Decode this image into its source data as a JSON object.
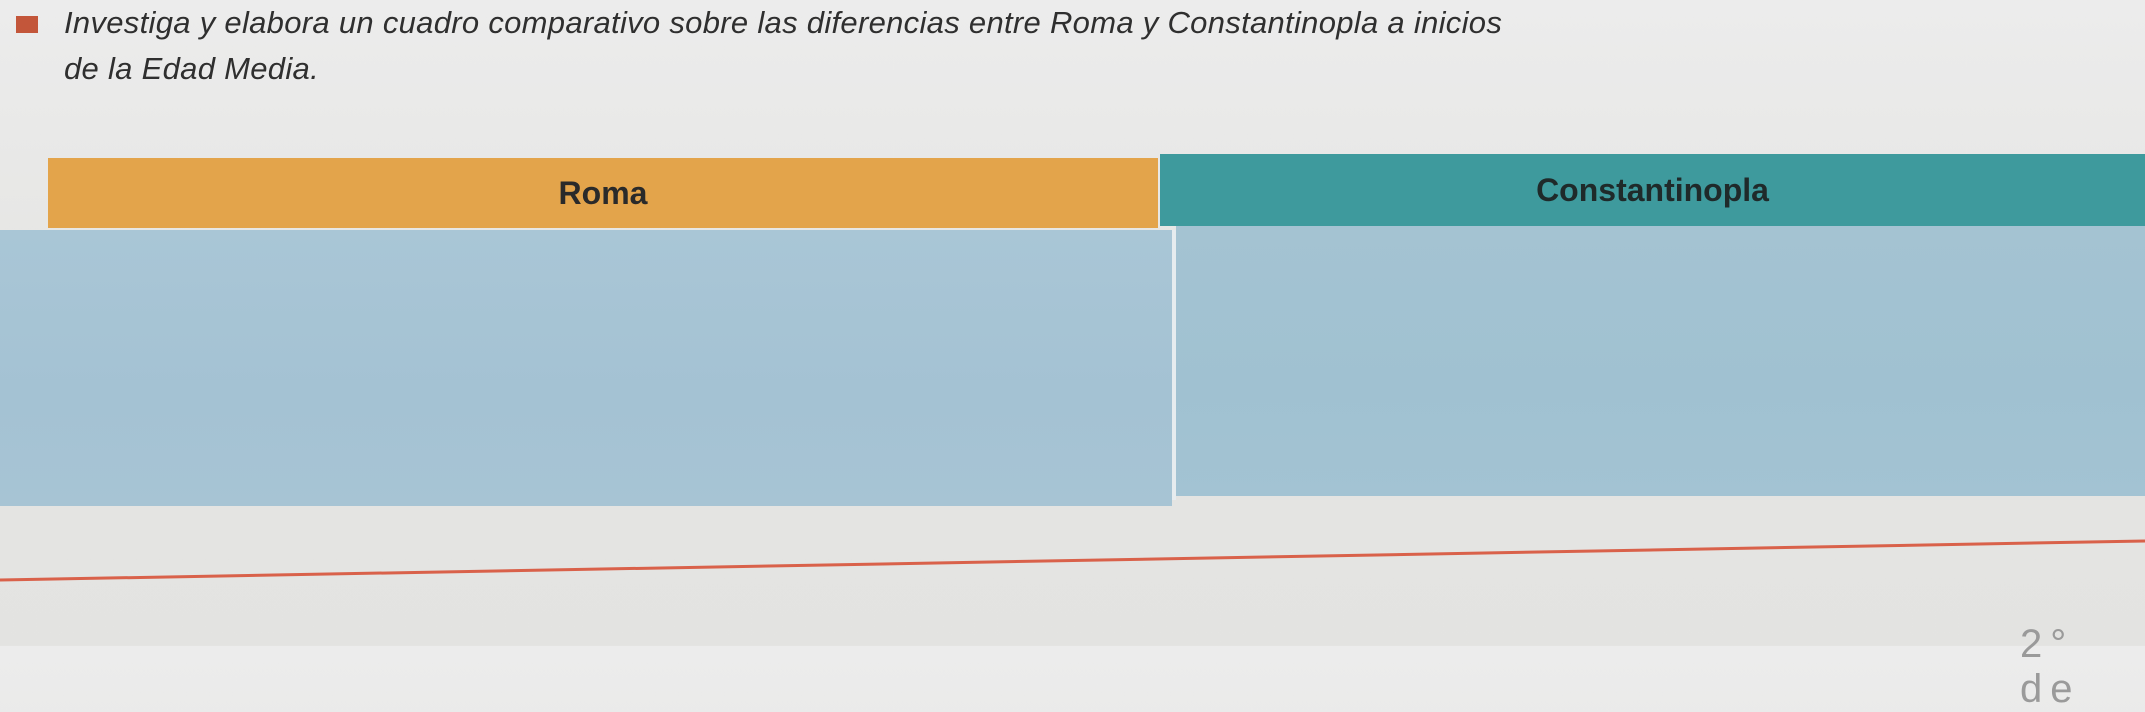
{
  "activity": {
    "instruction_line1": "Investiga y elabora un cuadro comparativo sobre las diferencias entre Roma y Constantinopla a inicios",
    "instruction_line2": "de la Edad Media."
  },
  "table": {
    "headers": [
      "Roma",
      "Constantinopla"
    ],
    "header_colors": {
      "roma": "#e3a44b",
      "constantinopla": "#3e9a9d"
    },
    "body_color": "#a6c4d4",
    "cells": [
      "",
      ""
    ]
  },
  "footer": {
    "page_fragment": "2° de"
  },
  "colors": {
    "bullet": "#c3563a",
    "answer_line": "#d9614a"
  }
}
